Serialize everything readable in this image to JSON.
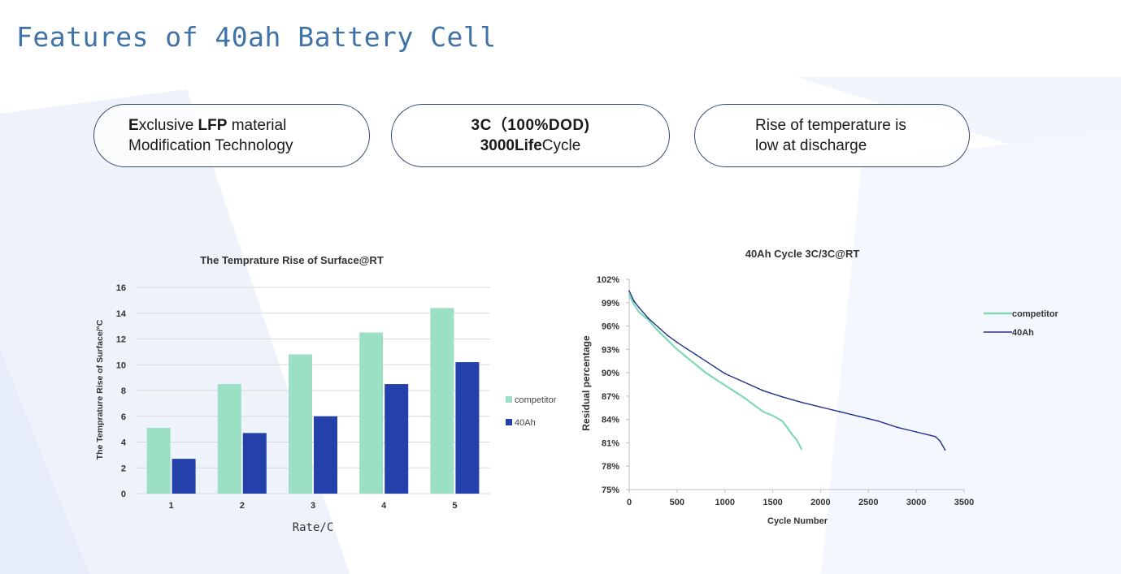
{
  "page": {
    "title": "Features of 40ah Battery Cell"
  },
  "features": [
    {
      "line1_b": "E",
      "line1_a": "xclusive ",
      "line1_c": "LFP",
      "line1_d": " material",
      "line2": "Modification Technology"
    },
    {
      "line1": "3C（100%DOD)",
      "line2_b": "3000Life",
      "line2_a": "Cycle"
    },
    {
      "line1": "Rise of temperature is",
      "line2": "low at discharge"
    }
  ],
  "colors": {
    "competitor": "#9be0c4",
    "ah40": "#2440aa",
    "line_competitor": "#7fd9b3",
    "line_40ah": "#22338f",
    "title": "#3f73a8"
  },
  "chart_data": [
    {
      "type": "bar",
      "title": "The Temprature Rise of Surface@RT",
      "xlabel": "Rate/C",
      "ylabel": "The Temprature Rise of Surface/°C",
      "categories": [
        "1",
        "2",
        "3",
        "4",
        "5"
      ],
      "ylim": [
        0,
        16
      ],
      "yticks": [
        "0",
        "2",
        "4",
        "6",
        "8",
        "10",
        "12",
        "14",
        "16"
      ],
      "grid": true,
      "legend_position": "right",
      "series": [
        {
          "name": "competitor",
          "values": [
            5.1,
            8.5,
            10.8,
            12.5,
            14.4
          ]
        },
        {
          "name": "40Ah",
          "values": [
            2.7,
            4.7,
            6.0,
            8.5,
            10.2
          ]
        }
      ]
    },
    {
      "type": "line",
      "title": "40Ah Cycle 3C/3C@RT",
      "xlabel": "Cycle Number",
      "ylabel": "Residual percentage",
      "xlim": [
        0,
        3500
      ],
      "ylim": [
        75,
        102
      ],
      "xticks": [
        "0",
        "500",
        "1000",
        "1500",
        "2000",
        "2500",
        "3000",
        "3500"
      ],
      "yticks": [
        "75%",
        "78%",
        "81%",
        "84%",
        "87%",
        "90%",
        "93%",
        "96%",
        "99%",
        "102%"
      ],
      "grid": false,
      "legend_position": "top-right",
      "series": [
        {
          "name": "competitor",
          "x": [
            0,
            50,
            100,
            200,
            300,
            400,
            500,
            600,
            700,
            800,
            900,
            1000,
            1100,
            1200,
            1300,
            1400,
            1500,
            1600,
            1650,
            1700,
            1750,
            1800
          ],
          "y": [
            100.0,
            98.8,
            97.8,
            96.8,
            95.4,
            94.2,
            93.0,
            92.0,
            91.0,
            90.0,
            89.2,
            88.4,
            87.6,
            86.8,
            85.9,
            85.0,
            84.5,
            83.8,
            83.0,
            82.1,
            81.4,
            80.2
          ]
        },
        {
          "name": "40Ah",
          "x": [
            0,
            50,
            100,
            200,
            300,
            400,
            500,
            600,
            700,
            800,
            900,
            1000,
            1200,
            1400,
            1600,
            1800,
            2000,
            2200,
            2400,
            2600,
            2800,
            3000,
            3200,
            3250,
            3300
          ],
          "y": [
            100.5,
            99.2,
            98.4,
            97.0,
            95.9,
            94.8,
            93.9,
            93.1,
            92.3,
            91.5,
            90.7,
            89.9,
            88.8,
            87.7,
            86.9,
            86.2,
            85.6,
            85.0,
            84.4,
            83.8,
            83.0,
            82.4,
            81.8,
            81.2,
            80.1
          ]
        }
      ]
    }
  ]
}
